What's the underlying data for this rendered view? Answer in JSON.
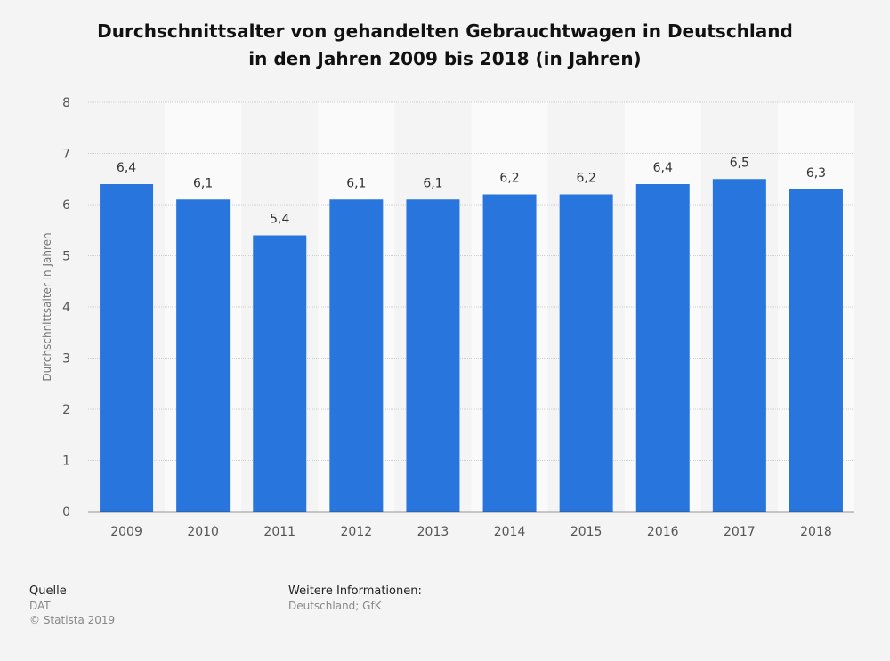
{
  "chart_data": {
    "type": "bar",
    "title_line1": "Durchschnittsalter von gehandelten Gebrauchtwagen in Deutschland",
    "title_line2": "in den Jahren 2009 bis 2018 (in Jahren)",
    "xlabel": "",
    "ylabel": "Durchschnittsalter in Jahren",
    "categories": [
      "2009",
      "2010",
      "2011",
      "2012",
      "2013",
      "2014",
      "2015",
      "2016",
      "2017",
      "2018"
    ],
    "values": [
      6.4,
      6.1,
      5.4,
      6.1,
      6.1,
      6.2,
      6.2,
      6.4,
      6.5,
      6.3
    ],
    "value_labels": [
      "6,4",
      "6,1",
      "5,4",
      "6,1",
      "6,1",
      "6,2",
      "6,2",
      "6,4",
      "6,5",
      "6,3"
    ],
    "ylim": [
      0,
      8
    ],
    "yticks": [
      "0",
      "1",
      "2",
      "3",
      "4",
      "5",
      "6",
      "7",
      "8"
    ],
    "grid": true,
    "bar_color": "#2876dd"
  },
  "footer": {
    "source_heading": "Quelle",
    "source": "DAT",
    "copyright": "© Statista 2019",
    "info_heading": "Weitere Informationen:",
    "info": "Deutschland; GfK"
  }
}
